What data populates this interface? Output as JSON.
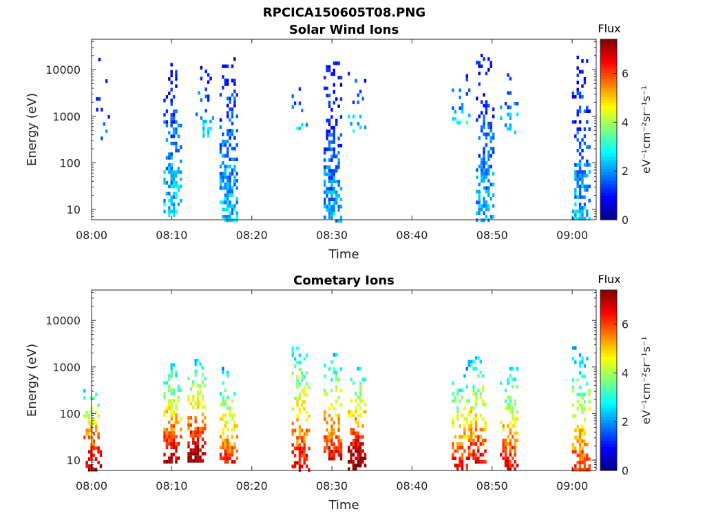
{
  "title": "RPCICA150605T08.PNG",
  "colorbar": {
    "label": "Flux",
    "unit_text": "eV⁻¹cm⁻²sr⁻¹s⁻¹",
    "range": [
      0,
      7.4
    ],
    "ticks": [
      "0",
      "2",
      "4",
      "6"
    ],
    "tick_values": [
      0,
      2,
      4,
      6
    ],
    "colormap": "jet"
  },
  "chart_data": [
    {
      "type": "heatmap",
      "title": "Solar Wind Ions",
      "xlabel": "Time",
      "ylabel": "Energy (eV)",
      "xlim": [
        "08:00",
        "09:03"
      ],
      "ylim": [
        6,
        45000
      ],
      "yscale": "log",
      "xticks": [
        "08:00",
        "08:10",
        "08:20",
        "08:30",
        "08:40",
        "08:50",
        "09:00"
      ],
      "yticks": [
        "10",
        "100",
        "1000",
        "10000"
      ],
      "ytick_values": [
        10,
        100,
        1000,
        10000
      ],
      "bursts": [
        {
          "time": "08:01",
          "emin": 300,
          "emax": 18000,
          "flux": 1.6,
          "density": 0.12
        },
        {
          "time": "08:10",
          "emin": 8,
          "emax": 14000,
          "flux": 2.2,
          "density": 0.55
        },
        {
          "time": "08:14",
          "emin": 400,
          "emax": 12000,
          "flux": 2.3,
          "density": 0.2
        },
        {
          "time": "08:17",
          "emin": 6,
          "emax": 22000,
          "flux": 2.1,
          "density": 0.6
        },
        {
          "time": "08:26",
          "emin": 600,
          "emax": 6000,
          "flux": 2.2,
          "density": 0.2
        },
        {
          "time": "08:30",
          "emin": 6,
          "emax": 15000,
          "flux": 1.9,
          "density": 0.6
        },
        {
          "time": "08:33",
          "emin": 500,
          "emax": 9000,
          "flux": 2.3,
          "density": 0.18
        },
        {
          "time": "08:46",
          "emin": 800,
          "emax": 8000,
          "flux": 2.1,
          "density": 0.2
        },
        {
          "time": "08:49",
          "emin": 6,
          "emax": 22000,
          "flux": 1.9,
          "density": 0.6
        },
        {
          "time": "08:52",
          "emin": 400,
          "emax": 10000,
          "flux": 2.3,
          "density": 0.2
        },
        {
          "time": "09:01",
          "emin": 6,
          "emax": 20000,
          "flux": 2.0,
          "density": 0.5
        }
      ]
    },
    {
      "type": "heatmap",
      "title": "Cometary Ions",
      "xlabel": "Time",
      "ylabel": "Energy (eV)",
      "xlim": [
        "08:00",
        "09:03"
      ],
      "ylim": [
        6,
        45000
      ],
      "yscale": "log",
      "xticks": [
        "08:00",
        "08:10",
        "08:20",
        "08:30",
        "08:40",
        "08:50",
        "09:00"
      ],
      "yticks": [
        "10",
        "100",
        "1000",
        "10000"
      ],
      "ytick_values": [
        10,
        100,
        1000,
        10000
      ],
      "bursts": [
        {
          "time": "08:00",
          "emin": 6,
          "emax": 400,
          "flux": 6.5,
          "density": 0.6
        },
        {
          "time": "08:10",
          "emin": 10,
          "emax": 1200,
          "flux": 6.2,
          "density": 0.6
        },
        {
          "time": "08:13",
          "emin": 10,
          "emax": 1500,
          "flux": 6.5,
          "density": 0.6
        },
        {
          "time": "08:17",
          "emin": 10,
          "emax": 1000,
          "flux": 5.5,
          "density": 0.55
        },
        {
          "time": "08:26",
          "emin": 6,
          "emax": 3300,
          "flux": 6.0,
          "density": 0.55
        },
        {
          "time": "08:30",
          "emin": 10,
          "emax": 2000,
          "flux": 6.0,
          "density": 0.55
        },
        {
          "time": "08:33",
          "emin": 6,
          "emax": 1000,
          "flux": 6.8,
          "density": 0.6
        },
        {
          "time": "08:46",
          "emin": 6,
          "emax": 1000,
          "flux": 5.8,
          "density": 0.5
        },
        {
          "time": "08:48",
          "emin": 10,
          "emax": 1700,
          "flux": 5.8,
          "density": 0.5
        },
        {
          "time": "08:52",
          "emin": 6,
          "emax": 1000,
          "flux": 6.0,
          "density": 0.55
        },
        {
          "time": "09:01",
          "emin": 6,
          "emax": 2800,
          "flux": 5.5,
          "density": 0.55
        }
      ]
    }
  ]
}
